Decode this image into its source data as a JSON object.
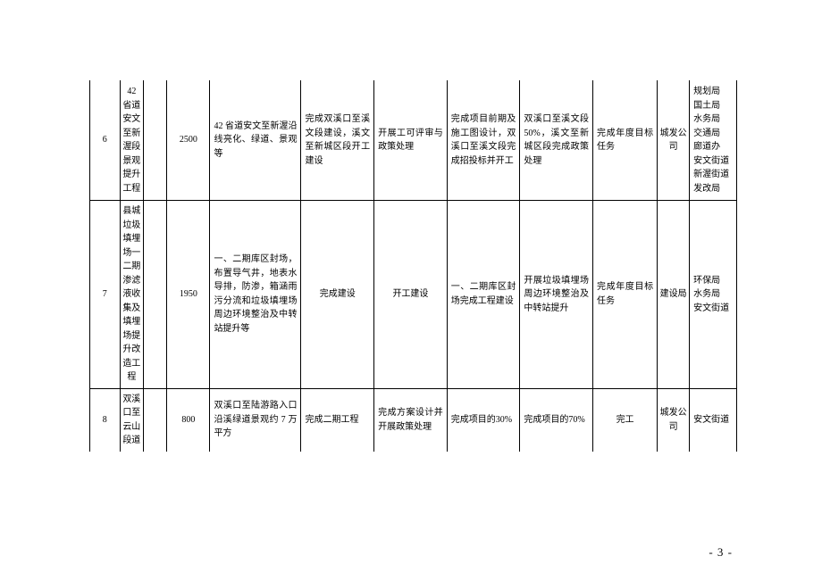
{
  "page_number": "- 3 -",
  "table": {
    "background": "#ffffff",
    "border_color": "#000000",
    "font_size": 10,
    "rows": [
      {
        "no": "6",
        "name": "42 省道安文至新渥段景观提升工程",
        "spare": "",
        "num": "2500",
        "desc": "42 省道安文至新渥沿线亮化、绿道、景观等",
        "c1": "完成双溪口至溪文段建设，溪文至新城区段开工建设",
        "c2": "开展工可评审与政策处理",
        "c3": "完成项目前期及施工图设计，双溪口至溪文段完成招投标并开工",
        "c4": "双溪口至溪文段 50%，溪文至新城区段完成政策处理",
        "c5": "完成年度目标任务",
        "c6": "城发公司",
        "c7": "规划局\n国土局\n水务局\n交通局\n廊道办\n安文街道\n新渥街道\n发改局"
      },
      {
        "no": "7",
        "name": "县城垃圾填埋场一二期渗滤液收集及填埋场提升改造工程",
        "spare": "",
        "num": "1950",
        "desc": "一、二期库区封场，布置导气井，地表水导排，防渗，箱涵雨污分流和垃圾填埋场周边环境整治及中转站提升等",
        "c1": "完成建设",
        "c2": "开工建设",
        "c3": "一、二期库区封场完成工程建设",
        "c4": "开展垃圾填埋场周边环境整治及中转站提升",
        "c5": "完成年度目标任务",
        "c6": "建设局",
        "c7": "环保局\n水务局\n安文街道"
      },
      {
        "no": "8",
        "name": "双溪口至云山段道",
        "spare": "",
        "num": "800",
        "desc": "双溪口至陆游路入口沿溪绿道景观约 7 万平方",
        "c1": "完成二期工程",
        "c2": "完成方案设计并开展政策处理",
        "c3": "完成项目的30%",
        "c4": "完成项目的70%",
        "c5": "完工",
        "c6": "城发公司",
        "c7": "安文街道"
      }
    ]
  }
}
